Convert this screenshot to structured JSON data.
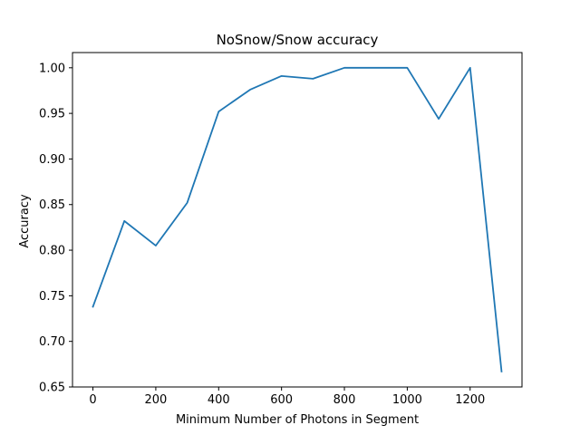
{
  "chart_data": {
    "type": "line",
    "title": "NoSnow/Snow accuracy",
    "xlabel": "Minimum Number of Photons in Segment",
    "ylabel": "Accuracy",
    "xlim": [
      -65,
      1365
    ],
    "ylim": [
      0.65,
      1.0167
    ],
    "xticks": [
      0,
      200,
      400,
      600,
      800,
      1000,
      1200
    ],
    "yticks": [
      0.65,
      0.7,
      0.75,
      0.8,
      0.85,
      0.9,
      0.95,
      1.0
    ],
    "xtick_labels": [
      "0",
      "200",
      "400",
      "600",
      "800",
      "1000",
      "1200"
    ],
    "ytick_labels": [
      "0.65",
      "0.70",
      "0.75",
      "0.80",
      "0.85",
      "0.90",
      "0.95",
      "1.00"
    ],
    "grid": false,
    "legend": "none",
    "series": [
      {
        "color": "#1f77b4",
        "x": [
          0,
          100,
          200,
          300,
          400,
          500,
          600,
          700,
          800,
          900,
          1000,
          1100,
          1200,
          1300
        ],
        "y": [
          0.738,
          0.832,
          0.805,
          0.852,
          0.952,
          0.976,
          0.991,
          0.988,
          1.0,
          1.0,
          1.0,
          0.944,
          1.0,
          0.667
        ]
      }
    ]
  }
}
